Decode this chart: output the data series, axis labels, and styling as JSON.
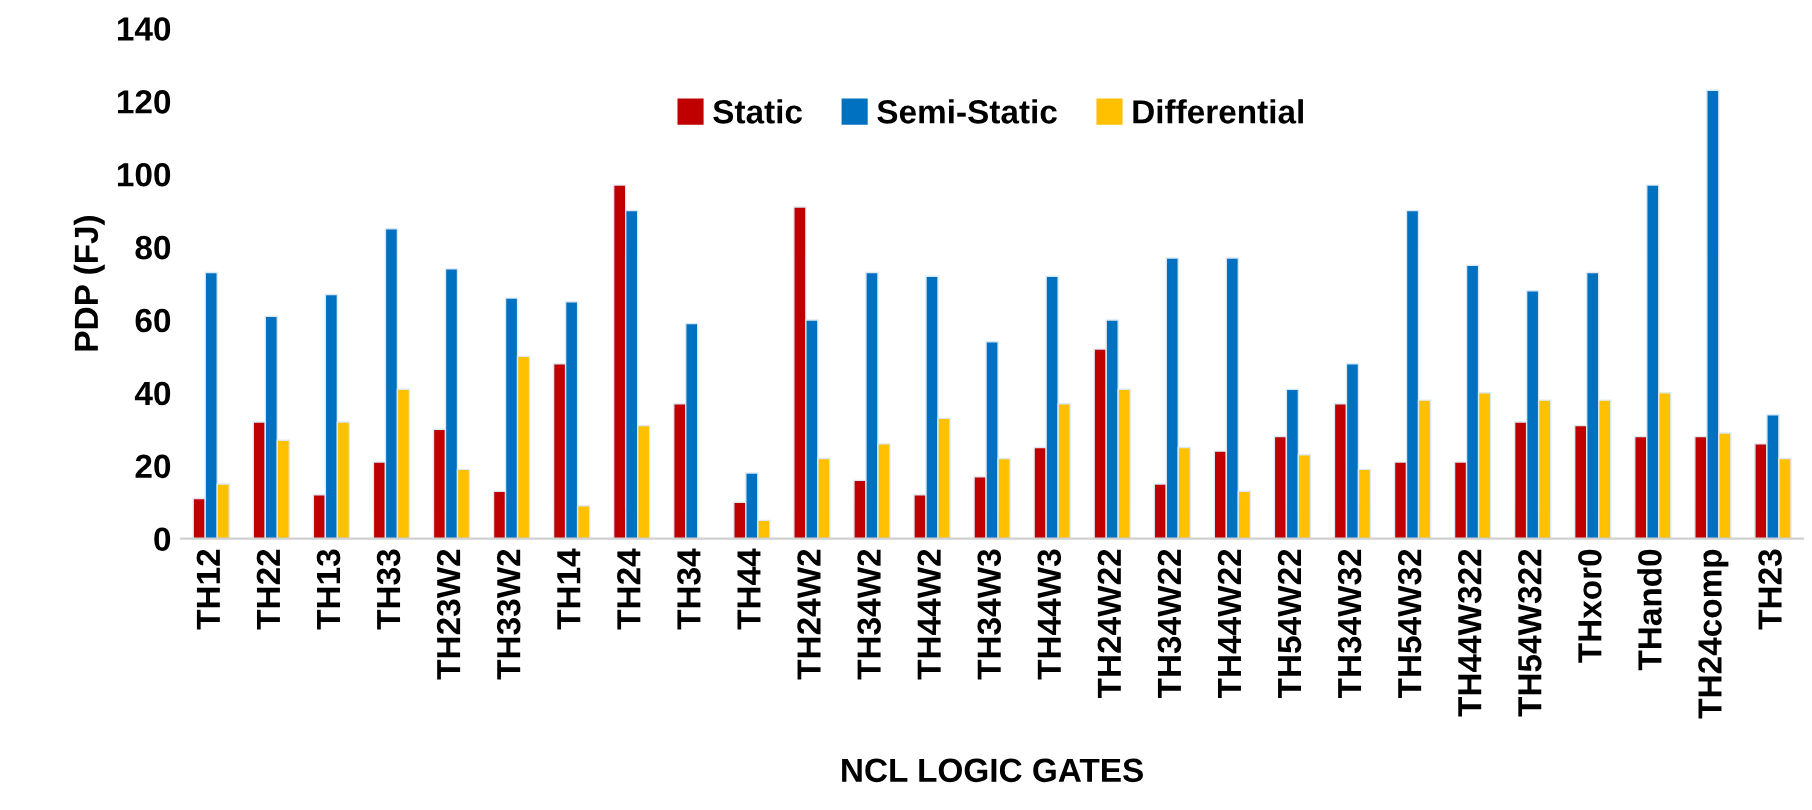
{
  "chart_data": {
    "type": "bar",
    "xlabel": "NCL LOGIC GATES",
    "ylabel": "PDP (FJ)",
    "categories": [
      "TH12",
      "TH22",
      "TH13",
      "TH33",
      "TH23W2",
      "TH33W2",
      "TH14",
      "TH24",
      "TH34",
      "TH44",
      "TH24W2",
      "TH34W2",
      "TH44W2",
      "TH34W3",
      "TH44W3",
      "TH24W22",
      "TH34W22",
      "TH44W22",
      "TH54W22",
      "TH34W32",
      "TH54W32",
      "TH44W322",
      "TH54W322",
      "THxor0",
      "THand0",
      "TH24comp",
      "TH23"
    ],
    "series": [
      {
        "name": "Static",
        "color": "#c00000",
        "values": [
          11,
          32,
          12,
          21,
          30,
          13,
          48,
          97,
          37,
          10,
          91,
          16,
          12,
          17,
          25,
          52,
          15,
          24,
          28,
          37,
          21,
          21,
          32,
          31,
          28,
          28,
          26
        ]
      },
      {
        "name": "Semi-Static",
        "color": "#0070c0",
        "values": [
          73,
          61,
          67,
          85,
          74,
          66,
          65,
          90,
          59,
          18,
          60,
          73,
          72,
          54,
          72,
          60,
          77,
          77,
          41,
          48,
          90,
          75,
          68,
          73,
          97,
          123,
          34
        ]
      },
      {
        "name": "Differential",
        "color": "#ffc000",
        "values": [
          15,
          27,
          32,
          41,
          19,
          50,
          9,
          31,
          null,
          5,
          22,
          26,
          33,
          22,
          37,
          41,
          25,
          13,
          23,
          19,
          38,
          40,
          38,
          38,
          40,
          29,
          22
        ]
      }
    ],
    "ylim": [
      0,
      140
    ],
    "yticks": [
      0,
      20,
      40,
      60,
      80,
      100,
      120,
      140
    ],
    "grid": false,
    "legend": "top"
  }
}
